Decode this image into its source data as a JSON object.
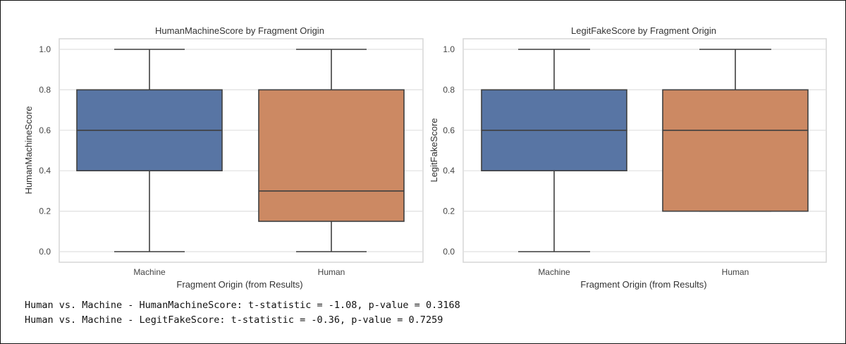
{
  "chart_data": [
    {
      "type": "box",
      "title": "HumanMachineScore by Fragment Origin",
      "xlabel": "Fragment Origin (from Results)",
      "ylabel": "HumanMachineScore",
      "ylim": [
        -0.05,
        1.05
      ],
      "yticks": [
        "0.0",
        "0.2",
        "0.4",
        "0.6",
        "0.8",
        "1.0"
      ],
      "categories": [
        "Machine",
        "Human"
      ],
      "boxes": [
        {
          "category": "Machine",
          "whisker_low": 0.0,
          "q1": 0.4,
          "median": 0.6,
          "q3": 0.8,
          "whisker_high": 1.0,
          "color": "#5875a4"
        },
        {
          "category": "Human",
          "whisker_low": 0.0,
          "q1": 0.15,
          "median": 0.3,
          "q3": 0.8,
          "whisker_high": 1.0,
          "color": "#cc8963"
        }
      ],
      "grid": true
    },
    {
      "type": "box",
      "title": "LegitFakeScore by Fragment Origin",
      "xlabel": "Fragment Origin (from Results)",
      "ylabel": "LegitFakeScore",
      "ylim": [
        -0.05,
        1.05
      ],
      "yticks": [
        "0.0",
        "0.2",
        "0.4",
        "0.6",
        "0.8",
        "1.0"
      ],
      "categories": [
        "Machine",
        "Human"
      ],
      "boxes": [
        {
          "category": "Machine",
          "whisker_low": 0.0,
          "q1": 0.4,
          "median": 0.6,
          "q3": 0.8,
          "whisker_high": 1.0,
          "color": "#5875a4"
        },
        {
          "category": "Human",
          "whisker_low": 0.2,
          "q1": 0.2,
          "median": 0.6,
          "q3": 0.8,
          "whisker_high": 1.0,
          "color": "#cc8963"
        }
      ],
      "grid": true
    }
  ],
  "output": {
    "line1": "Human vs. Machine - HumanMachineScore: t-statistic = -1.08, p-value = 0.3168",
    "line2": "Human vs. Machine - LegitFakeScore: t-statistic = -0.36, p-value = 0.7259"
  }
}
